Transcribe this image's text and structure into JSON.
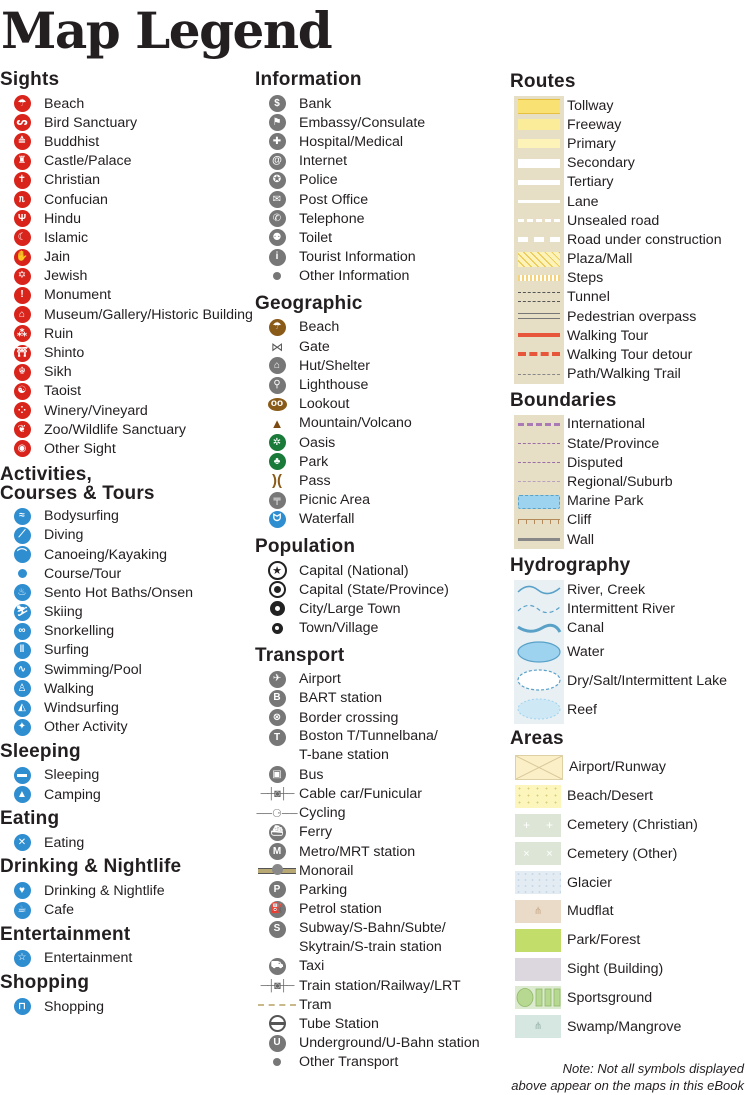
{
  "title": "Map Legend",
  "sights": {
    "heading": "Sights",
    "items": [
      "Beach",
      "Bird Sanctuary",
      "Buddhist",
      "Castle/Palace",
      "Christian",
      "Confucian",
      "Hindu",
      "Islamic",
      "Jain",
      "Jewish",
      "Monument",
      "Museum/Gallery/Historic Building",
      "Ruin",
      "Shinto",
      "Sikh",
      "Taoist",
      "Winery/Vineyard",
      "Zoo/Wildlife Sanctuary",
      "Other Sight"
    ]
  },
  "activities": {
    "heading": "Activities,\nCourses & Tours",
    "items": [
      "Bodysurfing",
      "Diving",
      "Canoeing/Kayaking",
      "Course/Tour",
      "Sento Hot Baths/Onsen",
      "Skiing",
      "Snorkelling",
      "Surfing",
      "Swimming/Pool",
      "Walking",
      "Windsurfing",
      "Other Activity"
    ]
  },
  "sleeping": {
    "heading": "Sleeping",
    "items": [
      "Sleeping",
      "Camping"
    ]
  },
  "eating": {
    "heading": "Eating",
    "items": [
      "Eating"
    ]
  },
  "drinking": {
    "heading": "Drinking & Nightlife",
    "items": [
      "Drinking & Nightlife",
      "Cafe"
    ]
  },
  "entertainment": {
    "heading": "Entertainment",
    "items": [
      "Entertainment"
    ]
  },
  "shopping": {
    "heading": "Shopping",
    "items": [
      "Shopping"
    ]
  },
  "information": {
    "heading": "Information",
    "items": [
      "Bank",
      "Embassy/Consulate",
      "Hospital/Medical",
      "Internet",
      "Police",
      "Post Office",
      "Telephone",
      "Toilet",
      "Tourist Information",
      "Other Information"
    ]
  },
  "geographic": {
    "heading": "Geographic",
    "items": [
      "Beach",
      "Gate",
      "Hut/Shelter",
      "Lighthouse",
      "Lookout",
      "Mountain/Volcano",
      "Oasis",
      "Park",
      "Pass",
      "Picnic Area",
      "Waterfall"
    ]
  },
  "population": {
    "heading": "Population",
    "items": [
      "Capital (National)",
      "Capital (State/Province)",
      "City/Large Town",
      "Town/Village"
    ]
  },
  "transport": {
    "heading": "Transport",
    "items": [
      "Airport",
      "BART station",
      "Border crossing",
      "Boston T/Tunnelbana/\nT-bane station",
      "Bus",
      "Cable car/Funicular",
      "Cycling",
      "Ferry",
      "Metro/MRT station",
      "Monorail",
      "Parking",
      "Petrol station",
      "Subway/S-Bahn/Subte/\nSkytrain/S-train station",
      "Taxi",
      "Train station/Railway/LRT",
      "Tram",
      "Tube Station",
      "Underground/U-Bahn station",
      "Other Transport"
    ]
  },
  "routes": {
    "heading": "Routes",
    "items": [
      "Tollway",
      "Freeway",
      "Primary",
      "Secondary",
      "Tertiary",
      "Lane",
      "Unsealed road",
      "Road under construction",
      "Plaza/Mall",
      "Steps",
      "Tunnel",
      "Pedestrian overpass",
      "Walking Tour",
      "Walking Tour detour",
      "Path/Walking Trail"
    ]
  },
  "boundaries": {
    "heading": "Boundaries",
    "items": [
      "International",
      "State/Province",
      "Disputed",
      "Regional/Suburb",
      "Marine Park",
      "Cliff",
      "Wall"
    ]
  },
  "hydrography": {
    "heading": "Hydrography",
    "items": [
      "River, Creek",
      "Intermittent River",
      "Canal",
      "Water",
      "Dry/Salt/Intermittent Lake",
      "Reef"
    ]
  },
  "areas": {
    "heading": "Areas",
    "items": [
      "Airport/Runway",
      "Beach/Desert",
      "Cemetery (Christian)",
      "Cemetery (Other)",
      "Glacier",
      "Mudflat",
      "Park/Forest",
      "Sight (Building)",
      "Sportsground",
      "Swamp/Mangrove"
    ]
  },
  "note": "Note: Not all symbols displayed\nabove appear on the maps in this eBook",
  "colors": {
    "sight_red": "#d9241c",
    "activity_blue": "#2f8ed0",
    "info_gray": "#777777",
    "geo_brown": "#8a5a19",
    "route_bg": "#e6dfc6"
  }
}
